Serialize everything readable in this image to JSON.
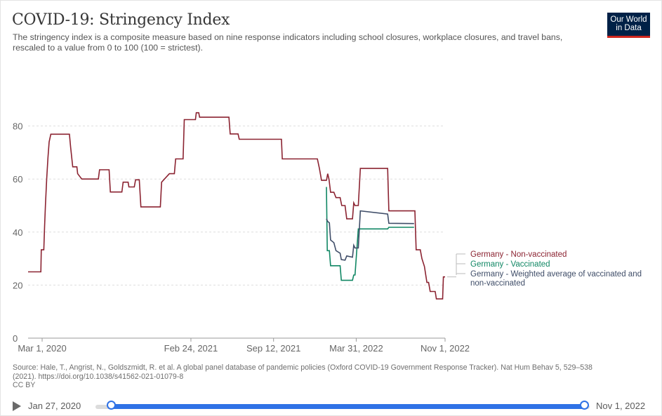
{
  "header": {
    "title": "COVID-19: Stringency Index",
    "subtitle": "The stringency index is a composite measure based on nine response indicators including school closures, workplace closures, and travel bans, rescaled to a value from 0 to 100 (100 = strictest).",
    "logo_line1": "Our World",
    "logo_line2": "in Data"
  },
  "footer": {
    "source_line1": "Source: Hale, T., Angrist, N., Goldszmidt, R. et al. A global panel database of pandemic policies (Oxford COVID-19 Government Response Tracker). Nat Hum Behav 5, 529–538",
    "source_line2": "(2021). https://doi.org/10.1038/s41562-021-01079-8",
    "license": "CC BY"
  },
  "timeline": {
    "start_label": "Jan 27, 2020",
    "end_label": "Nov 1, 2022",
    "play_icon": "play-icon"
  },
  "colors": {
    "non_vaccinated": "#8b2331",
    "vaccinated": "#108764",
    "weighted": "#3f4d68",
    "grid": "#dddddd",
    "axis": "#999999",
    "timeline_accent": "#2f72e6"
  },
  "chart_data": {
    "type": "line",
    "title": "COVID-19: Stringency Index",
    "ylim": [
      0,
      100
    ],
    "yticks": [
      0,
      20,
      40,
      60,
      80
    ],
    "xlim": [
      "2020-01-27",
      "2022-11-01"
    ],
    "xticks": [
      {
        "date": "2020-03-01",
        "label": "Mar 1, 2020"
      },
      {
        "date": "2021-02-24",
        "label": "Feb 24, 2021"
      },
      {
        "date": "2021-09-12",
        "label": "Sep 12, 2021"
      },
      {
        "date": "2022-03-31",
        "label": "Mar 31, 2022"
      },
      {
        "date": "2022-11-01",
        "label": "Nov 1, 2022"
      }
    ],
    "grid": true,
    "legend_position": "right",
    "series": [
      {
        "name": "Germany - Non-vaccinated",
        "color": "#8b2331",
        "points": [
          [
            "2020-01-27",
            25.0
          ],
          [
            "2020-02-27",
            25.0
          ],
          [
            "2020-02-28",
            33.3
          ],
          [
            "2020-03-05",
            33.3
          ],
          [
            "2020-03-07",
            42.0
          ],
          [
            "2020-03-09",
            50.0
          ],
          [
            "2020-03-12",
            60.0
          ],
          [
            "2020-03-15",
            68.0
          ],
          [
            "2020-03-18",
            74.0
          ],
          [
            "2020-03-22",
            76.9
          ],
          [
            "2020-05-06",
            76.9
          ],
          [
            "2020-05-09",
            72.0
          ],
          [
            "2020-05-14",
            64.6
          ],
          [
            "2020-05-24",
            64.6
          ],
          [
            "2020-05-26",
            62.0
          ],
          [
            "2020-06-05",
            60.0
          ],
          [
            "2020-07-15",
            60.0
          ],
          [
            "2020-07-18",
            63.5
          ],
          [
            "2020-08-10",
            63.5
          ],
          [
            "2020-08-13",
            55.1
          ],
          [
            "2020-09-10",
            55.1
          ],
          [
            "2020-09-13",
            58.8
          ],
          [
            "2020-09-25",
            58.8
          ],
          [
            "2020-09-27",
            57.0
          ],
          [
            "2020-10-10",
            57.0
          ],
          [
            "2020-10-13",
            59.7
          ],
          [
            "2020-10-22",
            59.7
          ],
          [
            "2020-10-26",
            49.5
          ],
          [
            "2020-12-12",
            49.5
          ],
          [
            "2020-12-15",
            58.8
          ],
          [
            "2020-12-22",
            60.0
          ],
          [
            "2021-01-03",
            62.0
          ],
          [
            "2021-01-15",
            62.0
          ],
          [
            "2021-01-18",
            67.6
          ],
          [
            "2021-02-05",
            67.6
          ],
          [
            "2021-02-08",
            82.4
          ],
          [
            "2021-03-07",
            82.4
          ],
          [
            "2021-03-09",
            85.0
          ],
          [
            "2021-03-15",
            85.0
          ],
          [
            "2021-03-17",
            83.3
          ],
          [
            "2021-05-27",
            83.3
          ],
          [
            "2021-05-30",
            77.0
          ],
          [
            "2021-06-18",
            77.0
          ],
          [
            "2021-06-21",
            75.0
          ],
          [
            "2021-10-01",
            75.0
          ],
          [
            "2021-10-03",
            67.6
          ],
          [
            "2021-12-27",
            67.6
          ],
          [
            "2022-01-01",
            64.0
          ],
          [
            "2022-01-06",
            59.5
          ],
          [
            "2022-01-18",
            59.5
          ],
          [
            "2022-01-21",
            62.0
          ],
          [
            "2022-01-24",
            60.0
          ],
          [
            "2022-01-28",
            55.0
          ],
          [
            "2022-02-05",
            55.0
          ],
          [
            "2022-02-10",
            53.0
          ],
          [
            "2022-02-20",
            53.0
          ],
          [
            "2022-02-24",
            50.0
          ],
          [
            "2022-03-04",
            50.0
          ],
          [
            "2022-03-08",
            45.0
          ],
          [
            "2022-03-22",
            45.0
          ],
          [
            "2022-03-25",
            51.0
          ],
          [
            "2022-03-28",
            50.0
          ],
          [
            "2022-04-05",
            50.0
          ],
          [
            "2022-04-10",
            64.0
          ],
          [
            "2022-06-15",
            64.0
          ],
          [
            "2022-06-18",
            48.0
          ],
          [
            "2022-08-20",
            48.0
          ],
          [
            "2022-08-23",
            33.3
          ],
          [
            "2022-09-02",
            33.3
          ],
          [
            "2022-09-06",
            30.0
          ],
          [
            "2022-09-12",
            27.0
          ],
          [
            "2022-09-18",
            21.0
          ],
          [
            "2022-09-22",
            21.0
          ],
          [
            "2022-09-26",
            17.6
          ],
          [
            "2022-10-08",
            17.6
          ],
          [
            "2022-10-11",
            14.8
          ],
          [
            "2022-10-26",
            14.8
          ],
          [
            "2022-10-28",
            23.1
          ],
          [
            "2022-11-01",
            23.1
          ]
        ]
      },
      {
        "name": "Germany - Vaccinated",
        "color": "#108764",
        "points": [
          [
            "2022-01-18",
            57.0
          ],
          [
            "2022-01-20",
            33.0
          ],
          [
            "2022-01-25",
            33.0
          ],
          [
            "2022-01-28",
            27.3
          ],
          [
            "2022-02-20",
            27.3
          ],
          [
            "2022-02-23",
            21.8
          ],
          [
            "2022-03-22",
            21.8
          ],
          [
            "2022-03-25",
            23.8
          ],
          [
            "2022-03-28",
            23.8
          ],
          [
            "2022-04-05",
            41.2
          ],
          [
            "2022-06-15",
            41.2
          ],
          [
            "2022-06-18",
            41.8
          ],
          [
            "2022-08-18",
            41.8
          ]
        ]
      },
      {
        "name": "Germany - Weighted average of vaccinated and non-vaccinated",
        "color": "#3f4d68",
        "points": [
          [
            "2022-01-18",
            45.0
          ],
          [
            "2022-01-21",
            44.0
          ],
          [
            "2022-01-25",
            43.5
          ],
          [
            "2022-01-28",
            37.0
          ],
          [
            "2022-02-05",
            36.0
          ],
          [
            "2022-02-10",
            33.0
          ],
          [
            "2022-02-20",
            32.0
          ],
          [
            "2022-02-23",
            29.6
          ],
          [
            "2022-03-04",
            29.4
          ],
          [
            "2022-03-08",
            31.0
          ],
          [
            "2022-03-22",
            30.5
          ],
          [
            "2022-03-25",
            35.0
          ],
          [
            "2022-03-28",
            34.0
          ],
          [
            "2022-04-05",
            34.0
          ],
          [
            "2022-04-10",
            48.0
          ],
          [
            "2022-06-15",
            46.8
          ],
          [
            "2022-06-18",
            43.3
          ],
          [
            "2022-08-18",
            43.2
          ]
        ]
      }
    ]
  }
}
